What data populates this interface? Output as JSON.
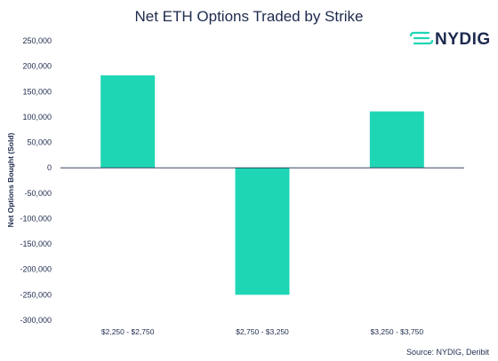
{
  "chart_data": {
    "type": "bar",
    "title": "Net ETH Options Traded by Strike",
    "ylabel": "Net Options Bought (Sold)",
    "xlabel": "",
    "categories": [
      "$2,250 - $2,750",
      "$2,750 - $3,250",
      "$3,250 - $3,750"
    ],
    "values": [
      182000,
      -250000,
      111000
    ],
    "ylim": [
      -300000,
      250000
    ],
    "yticks": [
      250000,
      200000,
      150000,
      100000,
      50000,
      0,
      -50000,
      -100000,
      -150000,
      -200000,
      -250000,
      -300000
    ],
    "ytick_labels": [
      "250,000",
      "200,000",
      "150,000",
      "100,000",
      "50,000",
      "0",
      "-50,000",
      "-100,000",
      "-150,000",
      "-200,000",
      "-250,000",
      "-300,000"
    ],
    "grid": false,
    "bar_color": "#1fd6b4",
    "source": "Source: NYDIG, Deribit"
  },
  "logo": {
    "text": "NYDIG",
    "color": "#1fd6b4"
  }
}
